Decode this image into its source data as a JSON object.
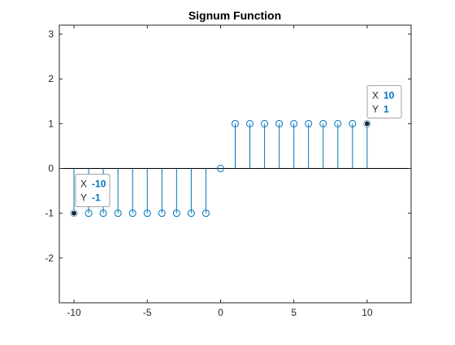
{
  "chart_data": {
    "type": "stem",
    "title": "Signum Function",
    "xlabel": "",
    "ylabel": "",
    "xlim": [
      -11,
      13
    ],
    "ylim": [
      -3,
      3.2
    ],
    "xticks": [
      -10,
      -5,
      0,
      5,
      10
    ],
    "yticks": [
      -2,
      -1,
      0,
      1,
      2,
      3
    ],
    "grid": false,
    "series_color": "#0072BD",
    "x": [
      -10,
      -9,
      -8,
      -7,
      -6,
      -5,
      -4,
      -3,
      -2,
      -1,
      0,
      1,
      2,
      3,
      4,
      5,
      6,
      7,
      8,
      9,
      10
    ],
    "y": [
      -1,
      -1,
      -1,
      -1,
      -1,
      -1,
      -1,
      -1,
      -1,
      -1,
      0,
      1,
      1,
      1,
      1,
      1,
      1,
      1,
      1,
      1,
      1
    ],
    "datatips": [
      {
        "x_label": "X",
        "x_value": "-10",
        "y_label": "Y",
        "y_value": "-1",
        "x": -10,
        "y": -1
      },
      {
        "x_label": "X",
        "x_value": "10",
        "y_label": "Y",
        "y_value": "1",
        "x": 10,
        "y": 1
      }
    ]
  }
}
